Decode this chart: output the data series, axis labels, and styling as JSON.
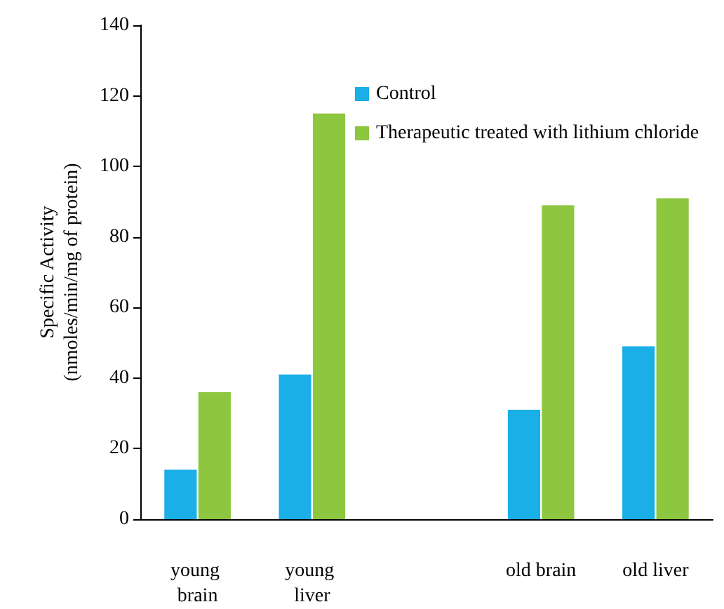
{
  "chart_data": {
    "type": "bar",
    "ylabel": "Specific Activity\n(nmoles/min/mg of protein)",
    "categories": [
      "young brain",
      "young liver",
      null,
      "old brain",
      "old liver"
    ],
    "series": [
      {
        "name": "Control",
        "color": "#1aafe6",
        "values": [
          14,
          41,
          null,
          31,
          49
        ]
      },
      {
        "name": "Therapeutic treated with lithium chloride",
        "color": "#8dc63f",
        "values": [
          36,
          115,
          null,
          89,
          91
        ]
      }
    ],
    "ylim": [
      0,
      140
    ],
    "yticks": [
      0,
      20,
      40,
      60,
      80,
      100,
      120,
      140
    ],
    "grid": false,
    "legend": "top right"
  }
}
